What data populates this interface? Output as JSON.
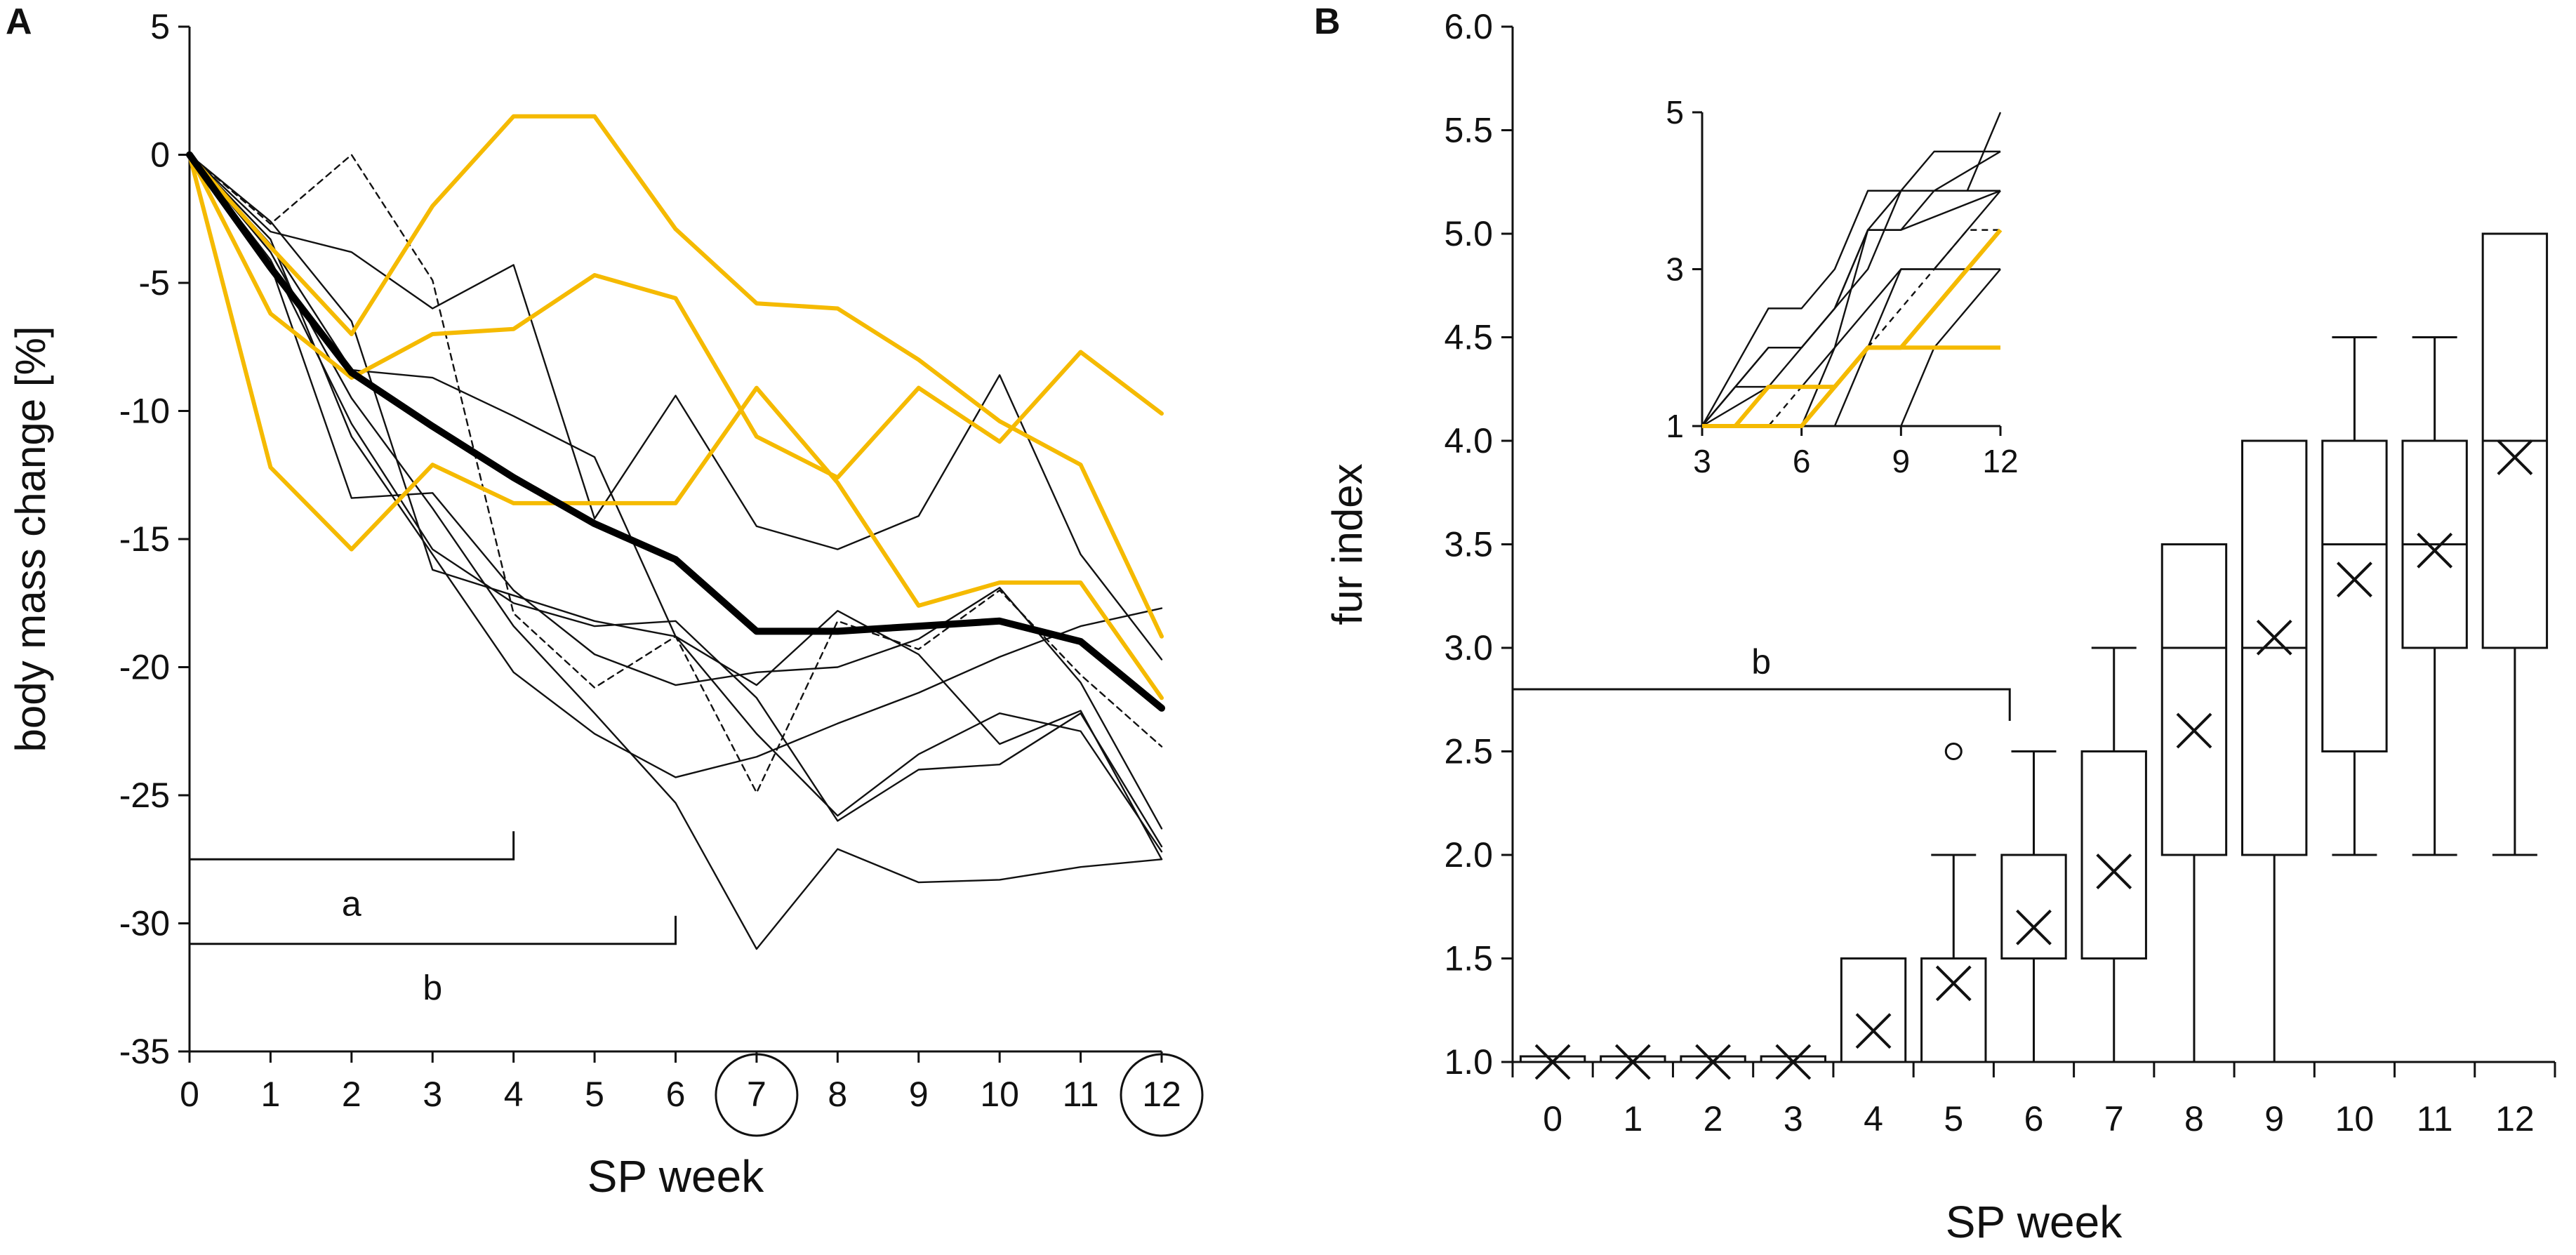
{
  "colors": {
    "highlight": "#F5BA00",
    "ink": "#111111",
    "mean": "#000000"
  },
  "chart_data": [
    {
      "panel": "A",
      "type": "line",
      "xlabel": "SP week",
      "ylabel": "body mass change [%]",
      "xlim": [
        0,
        12
      ],
      "ylim": [
        -35,
        5
      ],
      "x": [
        0,
        1,
        2,
        3,
        4,
        5,
        6,
        7,
        8,
        9,
        10,
        11,
        12
      ],
      "x_tick_labels": [
        "0",
        "1",
        "2",
        "3",
        "4",
        "5",
        "6",
        "7",
        "8",
        "9",
        "10",
        "11",
        "12"
      ],
      "y_ticks": [
        5,
        0,
        -5,
        -10,
        -15,
        -20,
        -25,
        -30,
        -35
      ],
      "y_tick_labels": [
        "5",
        "0",
        "-5",
        "-10",
        "-15",
        "-20",
        "-25",
        "-30",
        "-35"
      ],
      "circled_weeks": [
        7,
        12
      ],
      "series": [
        {
          "name": "mean",
          "style": "mean",
          "values": [
            0,
            -4.4,
            -8.5,
            -10.6,
            -12.6,
            -14.4,
            -15.8,
            -18.6,
            -18.6,
            -18.4,
            -18.2,
            -19,
            -21.6
          ]
        },
        {
          "name": "yellow-1",
          "style": "highlight",
          "values": [
            0,
            -3.6,
            -7,
            -2,
            1.5,
            1.5,
            -2.9,
            -5.8,
            -6,
            -8,
            -10.4,
            -12.1,
            -18.8
          ]
        },
        {
          "name": "yellow-2",
          "style": "highlight",
          "values": [
            0,
            -6.2,
            -8.7,
            -7,
            -6.8,
            -4.7,
            -5.6,
            -11,
            -12.6,
            -9.1,
            -11.2,
            -7.7,
            -10.1
          ]
        },
        {
          "name": "yellow-3",
          "style": "highlight",
          "values": [
            0,
            -12.2,
            -15.4,
            -12.1,
            -13.6,
            -13.6,
            -13.6,
            -9.1,
            -12.8,
            -17.6,
            -16.7,
            -16.7,
            -21.2
          ]
        },
        {
          "name": "black-1",
          "style": "thin",
          "values": [
            0,
            -3,
            -3.8,
            -6,
            -4.3,
            -14.2,
            -9.4,
            -14.5,
            -15.4,
            -14.1,
            -8.6,
            -15.6,
            -19.7
          ]
        },
        {
          "name": "black-2",
          "style": "thin",
          "values": [
            0,
            -2.6,
            -6.5,
            -16.2,
            -17.2,
            -18.2,
            -18.8,
            -20.7,
            -17.8,
            -19.5,
            -23,
            -21.7,
            -27.5
          ]
        },
        {
          "name": "black-3",
          "style": "thin",
          "values": [
            0,
            -3.8,
            -9.5,
            -13.8,
            -18.4,
            -21.8,
            -25.3,
            -31,
            -27.1,
            -28.4,
            -28.3,
            -27.8,
            -27.5
          ]
        },
        {
          "name": "black-4",
          "style": "thin",
          "values": [
            0,
            -4.3,
            -13.4,
            -13.2,
            -17,
            -19.5,
            -20.7,
            -20.2,
            -20,
            -18.9,
            -16.9,
            -20.6,
            -26.3
          ]
        },
        {
          "name": "black-5",
          "style": "thin",
          "values": [
            0,
            -3.5,
            -8.4,
            -8.7,
            -10.2,
            -11.8,
            -18.8,
            -22.6,
            -25.8,
            -23.4,
            -21.8,
            -22.5,
            -27.2
          ]
        },
        {
          "name": "black-6",
          "style": "thin",
          "values": [
            0,
            -4.1,
            -10.5,
            -15.4,
            -17.5,
            -18.4,
            -18.2,
            -21.2,
            -26,
            -24,
            -23.8,
            -21.8,
            -27
          ]
        },
        {
          "name": "black-7",
          "style": "thin",
          "values": [
            0,
            -3.3,
            -11,
            -15.6,
            -20.2,
            -22.6,
            -24.3,
            -23.5,
            -22.2,
            -21,
            -19.6,
            -18.4,
            -17.7
          ]
        },
        {
          "name": "dashed",
          "style": "dashed",
          "values": [
            0,
            -2.7,
            0,
            -4.9,
            -17.9,
            -20.8,
            -18.8,
            -24.9,
            -18.2,
            -19.3,
            -17,
            -20.3,
            -23.1
          ]
        }
      ],
      "brackets": [
        {
          "label": "a",
          "from": 0,
          "to": 4,
          "y": -27.5
        },
        {
          "label": "b",
          "from": 0,
          "to": 6,
          "y": -30.8
        }
      ]
    },
    {
      "panel": "B",
      "type": "box",
      "xlabel": "SP week",
      "ylabel": "fur index",
      "ylim": [
        1.0,
        6.0
      ],
      "y_ticks": [
        1.0,
        1.5,
        2.0,
        2.5,
        3.0,
        3.5,
        4.0,
        4.5,
        5.0,
        5.5,
        6.0
      ],
      "y_tick_labels": [
        "1.0",
        "1.5",
        "2.0",
        "2.5",
        "3.0",
        "3.5",
        "4.0",
        "4.5",
        "5.0",
        "5.5",
        "6.0"
      ],
      "categories": [
        "0",
        "1",
        "2",
        "3",
        "4",
        "5",
        "6",
        "7",
        "8",
        "9",
        "10",
        "11",
        "12"
      ],
      "circled_weeks": [
        12
      ],
      "boxes": [
        {
          "week": "0",
          "min": 1.0,
          "q1": 1.0,
          "median": 1.0,
          "q3": 1.0,
          "max": 1.0,
          "mean": 1.0
        },
        {
          "week": "1",
          "min": 1.0,
          "q1": 1.0,
          "median": 1.0,
          "q3": 1.0,
          "max": 1.0,
          "mean": 1.0
        },
        {
          "week": "2",
          "min": 1.0,
          "q1": 1.0,
          "median": 1.0,
          "q3": 1.0,
          "max": 1.0,
          "mean": 1.0
        },
        {
          "week": "3",
          "min": 1.0,
          "q1": 1.0,
          "median": 1.0,
          "q3": 1.0,
          "max": 1.0,
          "mean": 1.0
        },
        {
          "week": "4",
          "min": 1.0,
          "q1": 1.0,
          "median": 1.0,
          "q3": 1.5,
          "max": 1.5,
          "mean": 1.15
        },
        {
          "week": "5",
          "min": 1.0,
          "q1": 1.0,
          "median": 1.0,
          "q3": 1.5,
          "max": 2.0,
          "mean": 1.38,
          "outlier": 2.5
        },
        {
          "week": "6",
          "min": 1.0,
          "q1": 1.5,
          "median": 1.5,
          "q3": 2.0,
          "max": 2.5,
          "mean": 1.65
        },
        {
          "week": "7",
          "min": 1.0,
          "q1": 1.5,
          "median": 1.5,
          "q3": 2.5,
          "max": 3.0,
          "mean": 1.92
        },
        {
          "week": "8",
          "min": 1.0,
          "q1": 2.0,
          "median": 3.0,
          "q3": 3.5,
          "max": 3.5,
          "mean": 2.6
        },
        {
          "week": "9",
          "min": 1.0,
          "q1": 2.0,
          "median": 3.0,
          "q3": 4.0,
          "max": 4.0,
          "mean": 3.05
        },
        {
          "week": "10",
          "min": 2.0,
          "q1": 2.5,
          "median": 3.5,
          "q3": 4.0,
          "max": 4.5,
          "mean": 3.33
        },
        {
          "week": "11",
          "min": 2.0,
          "q1": 3.0,
          "median": 3.5,
          "q3": 4.0,
          "max": 4.5,
          "mean": 3.47
        },
        {
          "week": "12",
          "min": 2.0,
          "q1": 3.0,
          "median": 4.0,
          "q3": 5.0,
          "max": 5.0,
          "mean": 3.92
        }
      ],
      "brackets": [
        {
          "label": "b",
          "from": 0,
          "to": 6,
          "y": 2.8
        }
      ]
    },
    {
      "panel": "B-inset",
      "type": "line",
      "xlim": [
        3,
        12
      ],
      "ylim": [
        1,
        5
      ],
      "x_ticks": [
        3,
        6,
        9,
        12
      ],
      "x_tick_labels": [
        "3",
        "6",
        "9",
        "12"
      ],
      "y_ticks": [
        1,
        3,
        5
      ],
      "y_tick_labels": [
        "1",
        "3",
        "5"
      ],
      "series": [
        {
          "name": "i-black-1",
          "style": "thin",
          "x": [
            3,
            5,
            6,
            7,
            8,
            12
          ],
          "values": [
            1,
            2.5,
            2.5,
            3,
            4,
            4
          ]
        },
        {
          "name": "i-black-2",
          "style": "thin",
          "x": [
            3,
            4,
            5,
            6,
            7,
            8,
            10,
            12
          ],
          "values": [
            1,
            1.5,
            1.5,
            2,
            2.5,
            3.5,
            4.5,
            4.5
          ]
        },
        {
          "name": "i-black-3",
          "style": "thin",
          "x": [
            3,
            4,
            5,
            6,
            7,
            8,
            9,
            11,
            12
          ],
          "values": [
            1,
            1.5,
            2,
            2,
            2.5,
            3,
            4,
            4,
            5
          ]
        },
        {
          "name": "i-black-4",
          "style": "thin",
          "x": [
            3,
            5,
            6,
            7,
            8,
            9,
            10,
            12
          ],
          "values": [
            1,
            2,
            2,
            2.5,
            3.5,
            3.5,
            4,
            4.5
          ]
        },
        {
          "name": "i-black-5",
          "style": "thin",
          "x": [
            3,
            5,
            6,
            7,
            8,
            9,
            12
          ],
          "values": [
            1,
            1.5,
            1.5,
            2,
            3.5,
            3.5,
            4
          ]
        },
        {
          "name": "i-black-6",
          "style": "thin",
          "x": [
            3,
            6,
            7,
            8,
            9,
            10,
            11,
            12
          ],
          "values": [
            1,
            1,
            2,
            2.5,
            3,
            3,
            3.5,
            4
          ]
        },
        {
          "name": "i-black-7",
          "style": "thin",
          "x": [
            3,
            6,
            7,
            8,
            9,
            12
          ],
          "values": [
            1,
            1,
            1,
            2,
            3,
            3
          ]
        },
        {
          "name": "i-black-8",
          "style": "thin",
          "x": [
            3,
            8,
            9,
            10,
            12
          ],
          "values": [
            1,
            1,
            1,
            2,
            3
          ]
        },
        {
          "name": "i-dashed",
          "style": "dashed",
          "x": [
            3,
            5,
            6,
            7,
            8,
            9,
            10,
            11,
            12
          ],
          "values": [
            1,
            1,
            1.5,
            1.5,
            2,
            2.5,
            3,
            3.5,
            3.5
          ]
        },
        {
          "name": "i-yellow-1",
          "style": "highlight",
          "x": [
            3,
            4,
            5,
            6,
            7,
            8,
            9,
            10,
            12
          ],
          "values": [
            1,
            1,
            1.5,
            1.5,
            1.5,
            2,
            2,
            2,
            2
          ]
        },
        {
          "name": "i-yellow-2",
          "style": "highlight",
          "x": [
            3,
            5,
            6,
            8,
            9,
            12
          ],
          "values": [
            1,
            1,
            1,
            2,
            2,
            3.5
          ]
        },
        {
          "name": "i-yellow-3",
          "style": "highlight",
          "x": [
            3,
            4,
            6,
            7,
            8,
            9,
            10,
            11,
            12
          ],
          "values": [
            1,
            1,
            1,
            1.5,
            2,
            2,
            2.5,
            3,
            3.5
          ]
        }
      ]
    }
  ],
  "labels": {
    "panel_a": "A",
    "panel_b": "B"
  }
}
